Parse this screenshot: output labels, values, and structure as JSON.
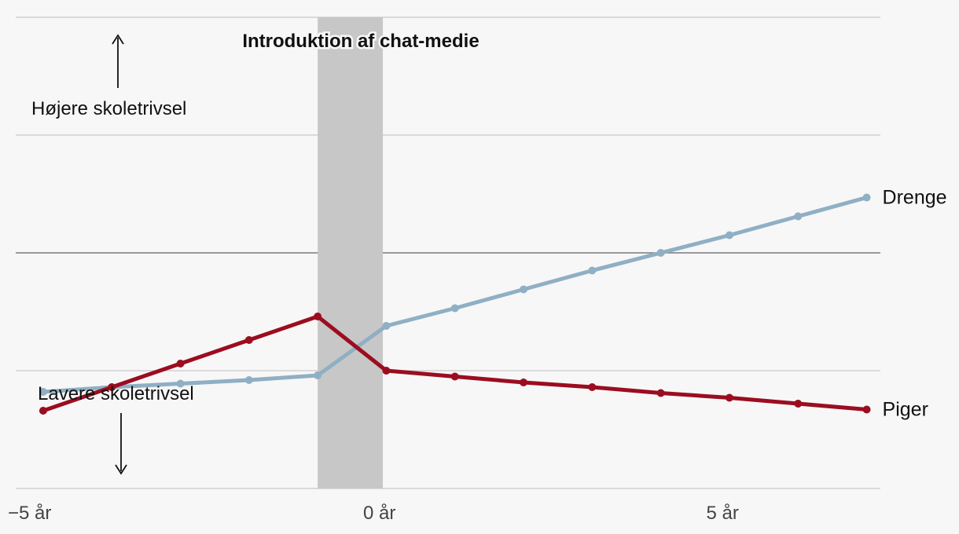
{
  "chart_data": {
    "type": "line",
    "title": "",
    "xlabel": "",
    "ylabel": "",
    "annotation_event": "Introduktion af chat-medie",
    "annotation_up": "Højere skoletrivsel",
    "annotation_down": "Lavere skoletrivsel",
    "x_ticks": [
      {
        "value": -5,
        "label": "−5 år"
      },
      {
        "value": 0,
        "label": "0 år"
      },
      {
        "value": 5,
        "label": "5 år"
      }
    ],
    "x": [
      -4.9,
      -3.9,
      -2.9,
      -1.9,
      -0.9,
      0.1,
      1.1,
      2.1,
      3.1,
      4.1,
      5.1,
      6.1,
      7.1
    ],
    "xlim": [
      -5.3,
      7.3
    ],
    "ylim": [
      -1,
      1
    ],
    "grid": true,
    "highlight_band": [
      -0.9,
      0.05
    ],
    "series": [
      {
        "name": "Drenge",
        "color": "#8fafc4",
        "values": [
          -0.59,
          -0.57,
          -0.555,
          -0.54,
          -0.52,
          -0.31,
          -0.235,
          -0.155,
          -0.075,
          0.0,
          0.075,
          0.155,
          0.235
        ]
      },
      {
        "name": "Piger",
        "color": "#9b0d1f",
        "values": [
          -0.67,
          -0.57,
          -0.47,
          -0.37,
          -0.27,
          -0.5,
          -0.525,
          -0.55,
          -0.57,
          -0.595,
          -0.615,
          -0.64,
          -0.665
        ]
      }
    ]
  }
}
